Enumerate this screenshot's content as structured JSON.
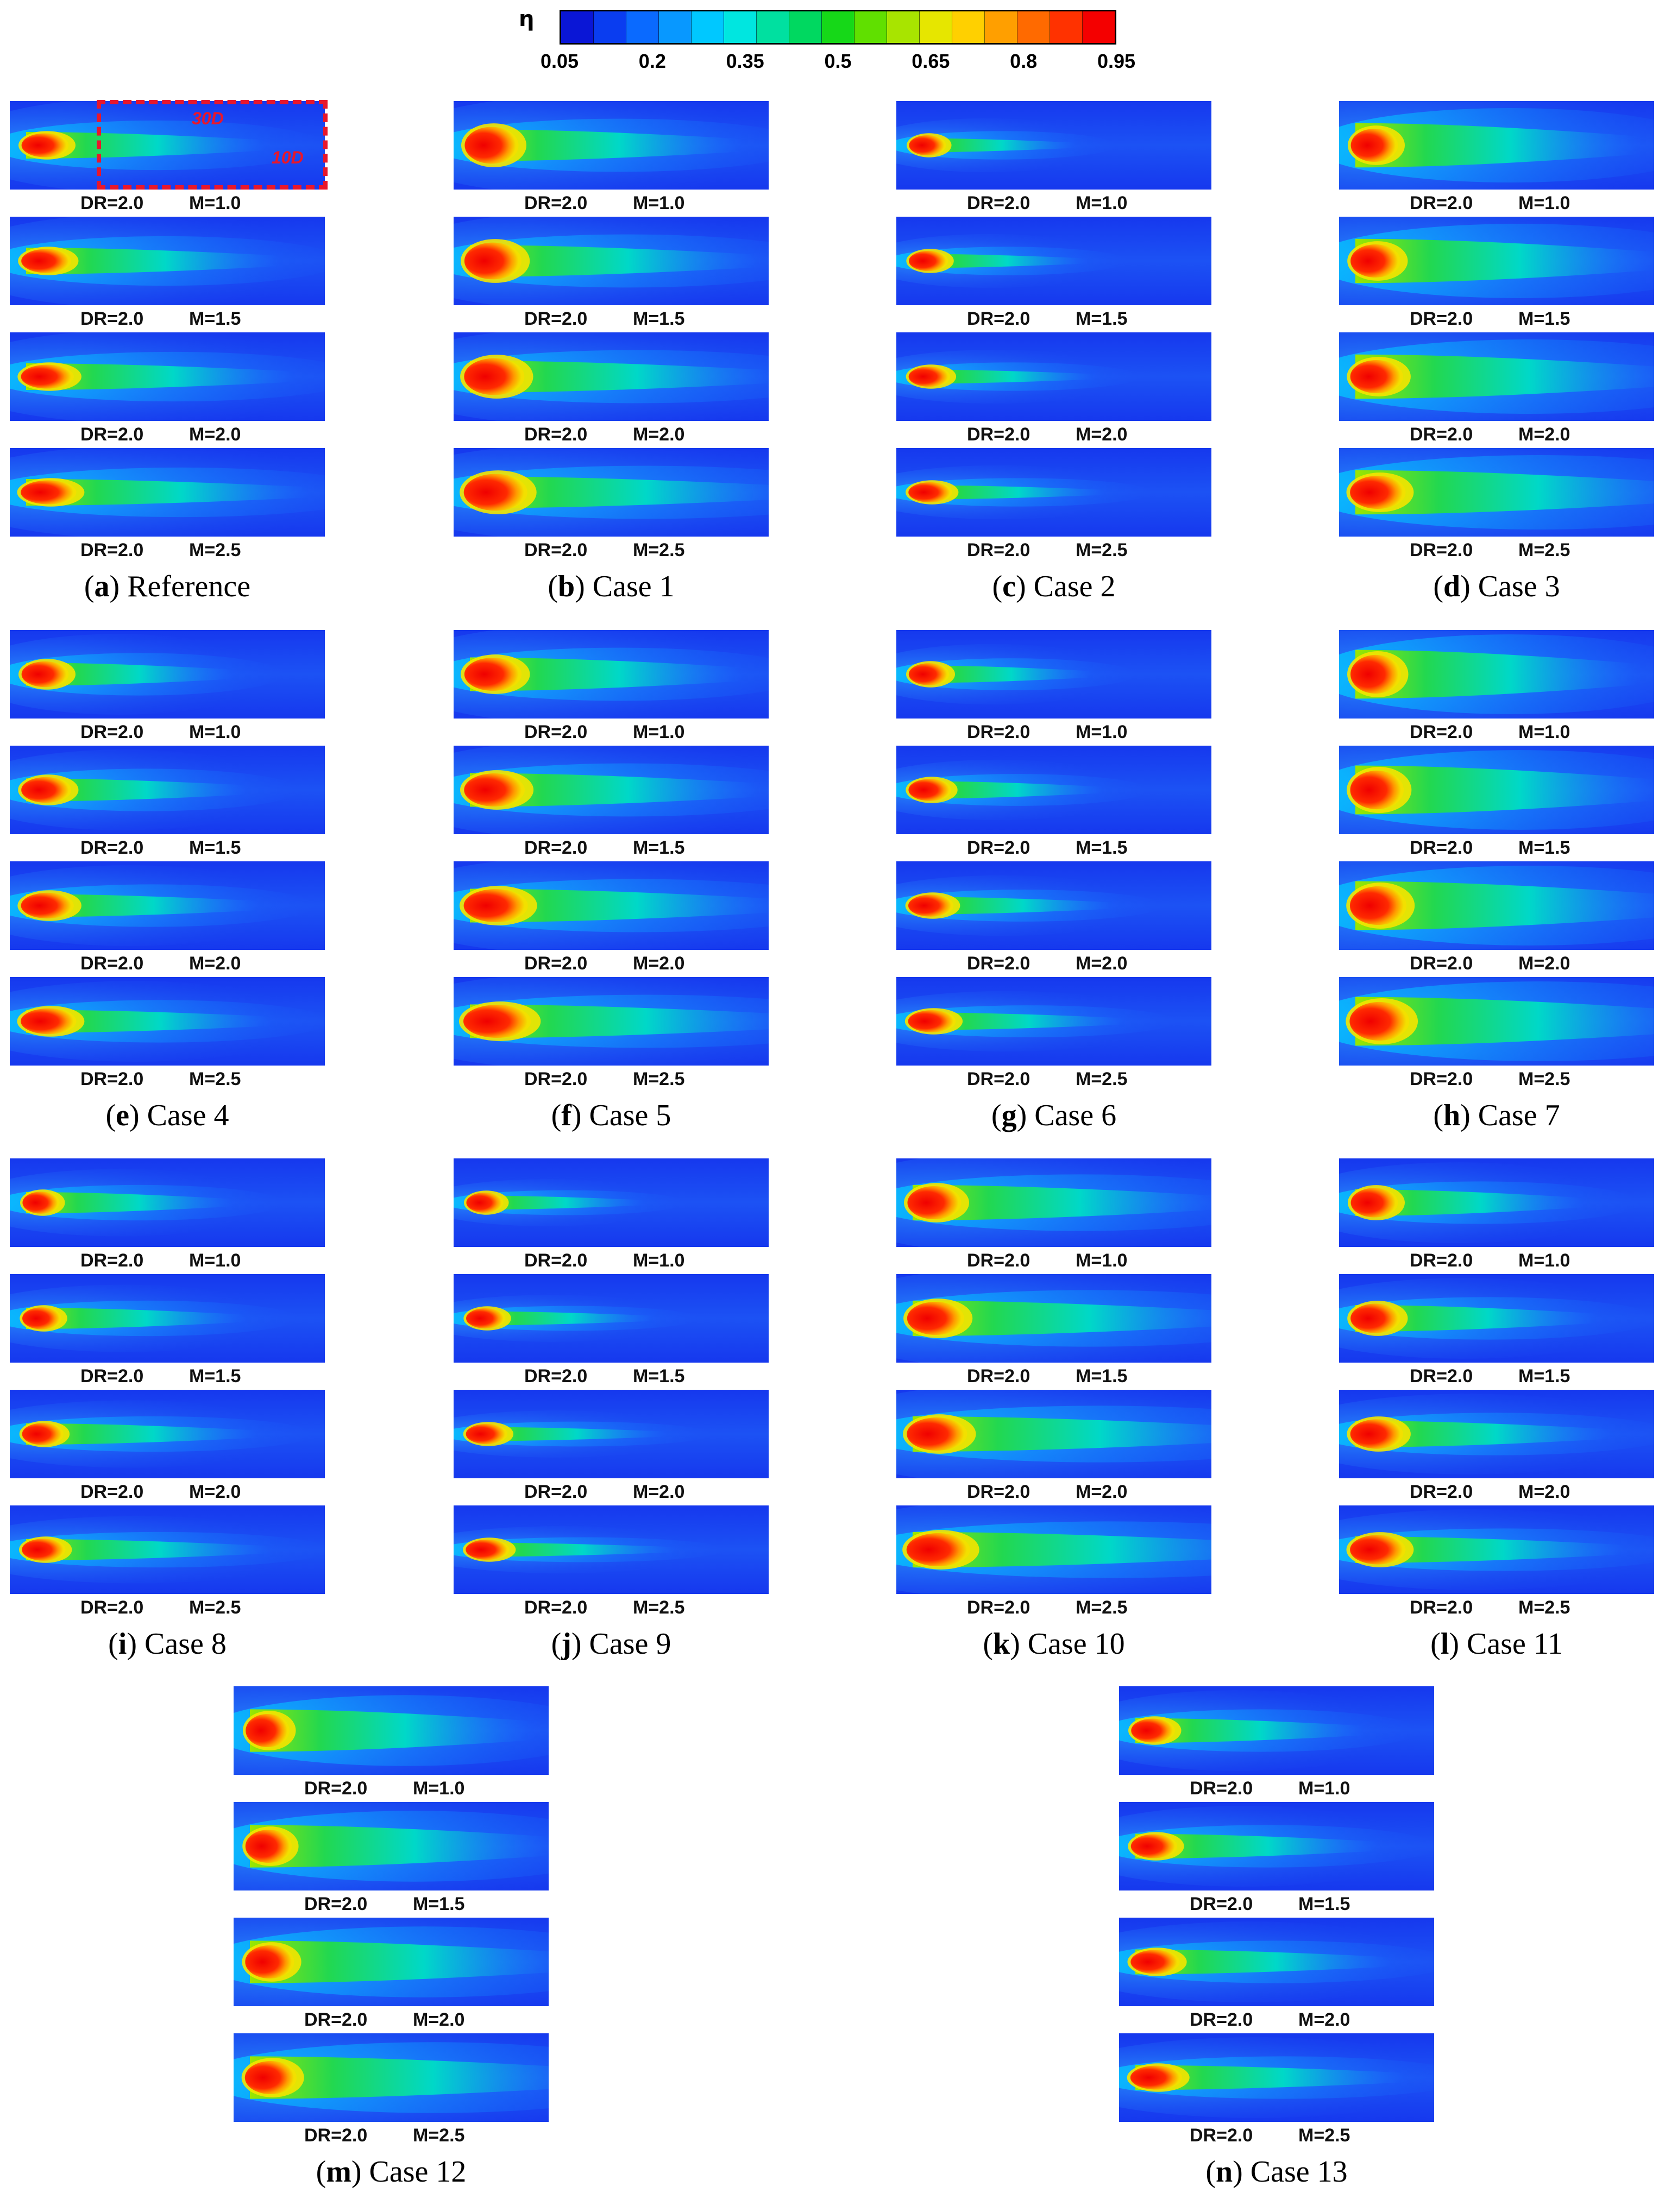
{
  "colorbar": {
    "symbol": "η",
    "ticks": [
      "0.05",
      "0.2",
      "0.35",
      "0.5",
      "0.65",
      "0.8",
      "0.95"
    ],
    "colors": [
      "#0a16d6",
      "#0a3df0",
      "#0a6aff",
      "#0898ff",
      "#00c8ff",
      "#00e6e0",
      "#00e0a0",
      "#00d860",
      "#16d818",
      "#60e000",
      "#a8e400",
      "#e6e600",
      "#ffd000",
      "#ff9f00",
      "#ff6a00",
      "#ff3200",
      "#f40000"
    ]
  },
  "annotation": {
    "length": "30D",
    "width": "10D"
  },
  "panels": [
    {
      "letter": "a",
      "title": "Reference",
      "labels": [
        {
          "dr": "DR=2.0",
          "m": "M=1.0"
        },
        {
          "dr": "DR=2.0",
          "m": "M=1.5"
        },
        {
          "dr": "DR=2.0",
          "m": "M=2.0"
        },
        {
          "dr": "DR=2.0",
          "m": "M=2.5"
        }
      ]
    },
    {
      "letter": "b",
      "title": "Case 1",
      "labels": [
        {
          "dr": "DR=2.0",
          "m": "M=1.0"
        },
        {
          "dr": "DR=2.0",
          "m": "M=1.5"
        },
        {
          "dr": "DR=2.0",
          "m": "M=2.0"
        },
        {
          "dr": "DR=2.0",
          "m": "M=2.5"
        }
      ]
    },
    {
      "letter": "c",
      "title": "Case 2",
      "labels": [
        {
          "dr": "DR=2.0",
          "m": "M=1.0"
        },
        {
          "dr": "DR=2.0",
          "m": "M=1.5"
        },
        {
          "dr": "DR=2.0",
          "m": "M=2.0"
        },
        {
          "dr": "DR=2.0",
          "m": "M=2.5"
        }
      ]
    },
    {
      "letter": "d",
      "title": "Case 3",
      "labels": [
        {
          "dr": "DR=2.0",
          "m": "M=1.0"
        },
        {
          "dr": "DR=2.0",
          "m": "M=1.5"
        },
        {
          "dr": "DR=2.0",
          "m": "M=2.0"
        },
        {
          "dr": "DR=2.0",
          "m": "M=2.5"
        }
      ]
    },
    {
      "letter": "e",
      "title": "Case 4",
      "labels": [
        {
          "dr": "DR=2.0",
          "m": "M=1.0"
        },
        {
          "dr": "DR=2.0",
          "m": "M=1.5"
        },
        {
          "dr": "DR=2.0",
          "m": "M=2.0"
        },
        {
          "dr": "DR=2.0",
          "m": "M=2.5"
        }
      ]
    },
    {
      "letter": "f",
      "title": "Case 5",
      "labels": [
        {
          "dr": "DR=2.0",
          "m": "M=1.0"
        },
        {
          "dr": "DR=2.0",
          "m": "M=1.5"
        },
        {
          "dr": "DR=2.0",
          "m": "M=2.0"
        },
        {
          "dr": "DR=2.0",
          "m": "M=2.5"
        }
      ]
    },
    {
      "letter": "g",
      "title": "Case 6",
      "labels": [
        {
          "dr": "DR=2.0",
          "m": "M=1.0"
        },
        {
          "dr": "DR=2.0",
          "m": "M=1.5"
        },
        {
          "dr": "DR=2.0",
          "m": "M=2.0"
        },
        {
          "dr": "DR=2.0",
          "m": "M=2.5"
        }
      ]
    },
    {
      "letter": "h",
      "title": "Case 7",
      "labels": [
        {
          "dr": "DR=2.0",
          "m": "M=1.0"
        },
        {
          "dr": "DR=2.0",
          "m": "M=1.5"
        },
        {
          "dr": "DR=2.0",
          "m": "M=2.0"
        },
        {
          "dr": "DR=2.0",
          "m": "M=2.5"
        }
      ]
    },
    {
      "letter": "i",
      "title": "Case 8",
      "labels": [
        {
          "dr": "DR=2.0",
          "m": "M=1.0"
        },
        {
          "dr": "DR=2.0",
          "m": "M=1.5"
        },
        {
          "dr": "DR=2.0",
          "m": "M=2.0"
        },
        {
          "dr": "DR=2.0",
          "m": "M=2.5"
        }
      ]
    },
    {
      "letter": "j",
      "title": "Case 9",
      "labels": [
        {
          "dr": "DR=2.0",
          "m": "M=1.0"
        },
        {
          "dr": "DR=2.0",
          "m": "M=1.5"
        },
        {
          "dr": "DR=2.0",
          "m": "M=2.0"
        },
        {
          "dr": "DR=2.0",
          "m": "M=2.5"
        }
      ]
    },
    {
      "letter": "k",
      "title": "Case 10",
      "labels": [
        {
          "dr": "DR=2.0",
          "m": "M=1.0"
        },
        {
          "dr": "DR=2.0",
          "m": "M=1.5"
        },
        {
          "dr": "DR=2.0",
          "m": "M=2.0"
        },
        {
          "dr": "DR=2.0",
          "m": "M=2.5"
        }
      ]
    },
    {
      "letter": "l",
      "title": "Case 11",
      "labels": [
        {
          "dr": "DR=2.0",
          "m": "M=1.0"
        },
        {
          "dr": "DR=2.0",
          "m": "M=1.5"
        },
        {
          "dr": "DR=2.0",
          "m": "M=2.0"
        },
        {
          "dr": "DR=2.0",
          "m": "M=2.5"
        }
      ]
    },
    {
      "letter": "m",
      "title": "Case 12",
      "labels": [
        {
          "dr": "DR=2.0",
          "m": "M=1.0"
        },
        {
          "dr": "DR=2.0",
          "m": "M=1.5"
        },
        {
          "dr": "DR=2.0",
          "m": "M=2.0"
        },
        {
          "dr": "DR=2.0",
          "m": "M=2.5"
        }
      ]
    },
    {
      "letter": "n",
      "title": "Case 13",
      "labels": [
        {
          "dr": "DR=2.0",
          "m": "M=1.0"
        },
        {
          "dr": "DR=2.0",
          "m": "M=1.5"
        },
        {
          "dr": "DR=2.0",
          "m": "M=2.0"
        },
        {
          "dr": "DR=2.0",
          "m": "M=2.5"
        }
      ]
    }
  ]
}
